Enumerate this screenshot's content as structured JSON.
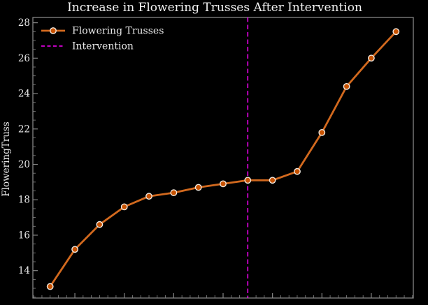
{
  "title": "Increase in Flowering Trusses After Intervention",
  "legend": {
    "series_label": "Flowering Trusses",
    "intervention_label": "Intervention"
  },
  "chart_data": {
    "type": "line",
    "title": "Increase in Flowering Trusses After Intervention",
    "xlabel": "",
    "ylabel": "FloweringTruss",
    "x": [
      1,
      2,
      3,
      4,
      5,
      6,
      7,
      8,
      9,
      10,
      11,
      12,
      13,
      14,
      15
    ],
    "series": [
      {
        "name": "Flowering Trusses",
        "values": [
          13.1,
          15.2,
          16.6,
          17.6,
          18.2,
          18.4,
          18.7,
          18.9,
          19.1,
          19.1,
          19.6,
          21.8,
          24.4,
          26.0,
          27.5
        ]
      }
    ],
    "intervention_x": 9,
    "xlim": [
      0.3,
      15.7
    ],
    "ylim": [
      12.45,
      28.3
    ],
    "yticks": [
      14,
      16,
      18,
      20,
      22,
      24,
      26,
      28
    ],
    "xticks": [
      2,
      4,
      6,
      8,
      10,
      12,
      14
    ],
    "x_tick_labels_visible": false,
    "y_minor_step": 0.5,
    "x_minor_step": 0.33333,
    "grid": false,
    "legend_position": "upper-left",
    "legend_frame": false,
    "colors": {
      "background": "#000000",
      "line": "#d2691e",
      "marker_face": "#c85200",
      "marker_edge": "#f2e9df",
      "intervention": "#ff00ff",
      "spine": "#858585",
      "tick_label": "#e8e8e8",
      "title": "#f2f2f2"
    }
  }
}
